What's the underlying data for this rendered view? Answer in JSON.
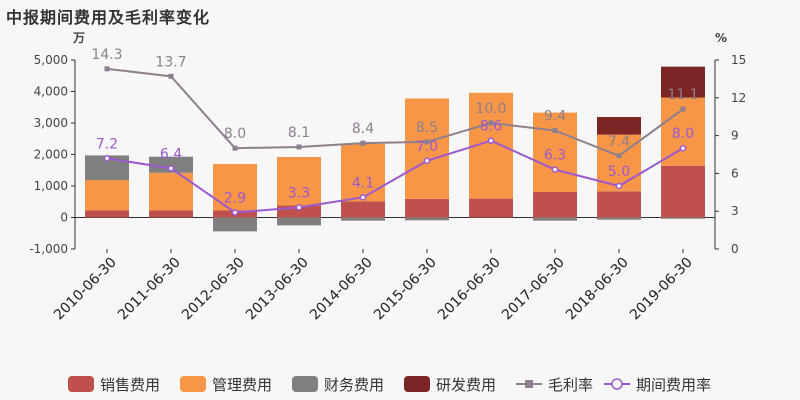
{
  "title": "中报期间费用及毛利率变化",
  "chart_data": {
    "type": "bar",
    "title": "中报期间费用及毛利率变化",
    "left_unit": "万",
    "right_unit": "%",
    "categories": [
      "2010-06-30",
      "2011-06-30",
      "2012-06-30",
      "2013-06-30",
      "2014-06-30",
      "2015-06-30",
      "2016-06-30",
      "2017-06-30",
      "2018-06-30",
      "2019-06-30"
    ],
    "ylim_left": [
      -1000,
      5000
    ],
    "ylim_right": [
      0,
      15
    ],
    "left_ticks": [
      "-1,000",
      "0",
      "1,000",
      "2,000",
      "3,000",
      "4,000",
      "5,000"
    ],
    "left_tick_values": [
      -1000,
      0,
      1000,
      2000,
      3000,
      4000,
      5000
    ],
    "right_ticks": [
      "0",
      "3",
      "6",
      "9",
      "12",
      "15"
    ],
    "right_tick_values": [
      0,
      3,
      6,
      9,
      12,
      15
    ],
    "bar_series": [
      {
        "name": "销售费用",
        "color": "#c0504d",
        "values": [
          230,
          230,
          230,
          380,
          510,
          590,
          600,
          810,
          830,
          1640
        ]
      },
      {
        "name": "管理费用",
        "color": "#f79646",
        "values": [
          960,
          1190,
          1470,
          1540,
          1830,
          3190,
          3360,
          2520,
          1800,
          2170
        ]
      },
      {
        "name": "财务费用",
        "color": "#7f7f7f",
        "values": [
          780,
          510,
          -440,
          -250,
          -100,
          -90,
          0,
          -100,
          -70,
          -40
        ]
      },
      {
        "name": "研发费用",
        "color": "#7b2525",
        "values": [
          0,
          0,
          0,
          0,
          0,
          0,
          0,
          0,
          560,
          980
        ]
      }
    ],
    "line_series": [
      {
        "name": "毛利率",
        "color": "#8e7f8f",
        "values": [
          14.3,
          13.7,
          8.0,
          8.1,
          8.4,
          8.5,
          10.0,
          9.4,
          7.4,
          11.1
        ],
        "labels": [
          "14.3",
          "13.7",
          "8.0",
          "8.1",
          "8.4",
          "8.5",
          "10.0",
          "9.4",
          "7.4",
          "11.1"
        ]
      },
      {
        "name": "期间费用率",
        "color": "#9b59d0",
        "values": [
          7.2,
          6.4,
          2.9,
          3.3,
          4.1,
          7.0,
          8.6,
          6.3,
          5.0,
          8.0
        ],
        "labels": [
          "7.2",
          "6.4",
          "2.9",
          "3.3",
          "4.1",
          "7.0",
          "8.6",
          "6.3",
          "5.0",
          "8.0"
        ]
      }
    ],
    "legend": {
      "position": "bottom"
    },
    "grid": false
  }
}
